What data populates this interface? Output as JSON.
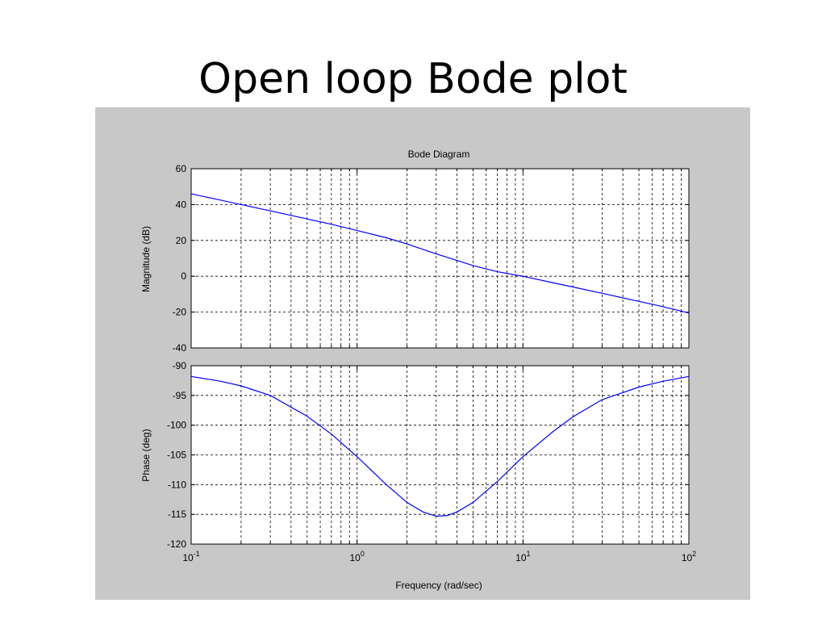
{
  "slide": {
    "title": "Open loop Bode plot"
  },
  "colors": {
    "figure_bg": "#c8c8c8",
    "axes_bg": "#ffffff",
    "line": "#0000ff",
    "grid": "#000000"
  },
  "chart_data": [
    {
      "type": "line",
      "title": "Bode Diagram",
      "xlabel": "",
      "ylabel": "Magnitude (dB)",
      "xscale": "log",
      "xlim": [
        0.1,
        100
      ],
      "ylim": [
        -40,
        60
      ],
      "yticks": [
        60,
        40,
        20,
        0,
        -20,
        -40
      ],
      "grid": true,
      "series": [
        {
          "x": [
            0.1,
            0.15,
            0.2,
            0.3,
            0.5,
            0.7,
            1,
            1.5,
            2,
            3,
            5,
            7,
            10,
            15,
            20,
            30,
            50,
            70,
            100
          ],
          "y": [
            46,
            42.5,
            40,
            36.5,
            32,
            29,
            25.5,
            21.5,
            18,
            12.5,
            6,
            2.5,
            0,
            -3.5,
            -6,
            -9.5,
            -14,
            -17,
            -20.5
          ]
        }
      ]
    },
    {
      "type": "line",
      "title": "",
      "xlabel": "Frequency (rad/sec)",
      "ylabel": "Phase (deg)",
      "xscale": "log",
      "xlim": [
        0.1,
        100
      ],
      "ylim": [
        -120,
        -90
      ],
      "yticks": [
        -90,
        -95,
        -100,
        -105,
        -110,
        -115,
        -120
      ],
      "xtick_labels": [
        {
          "base": "10",
          "exp": "-1"
        },
        {
          "base": "10",
          "exp": "0"
        },
        {
          "base": "10",
          "exp": "1"
        },
        {
          "base": "10",
          "exp": "2"
        }
      ],
      "grid": true,
      "series": [
        {
          "x": [
            0.1,
            0.15,
            0.2,
            0.3,
            0.5,
            0.7,
            1,
            1.5,
            2,
            2.5,
            3,
            3.5,
            4,
            5,
            7,
            10,
            15,
            20,
            30,
            50,
            70,
            100
          ],
          "y": [
            -91.8,
            -92.6,
            -93.4,
            -95.0,
            -98.5,
            -101.5,
            -105.3,
            -110.0,
            -113.0,
            -114.6,
            -115.3,
            -115.2,
            -114.6,
            -113.0,
            -109.5,
            -105.3,
            -101.2,
            -98.6,
            -95.7,
            -93.6,
            -92.6,
            -91.8
          ]
        }
      ]
    }
  ]
}
